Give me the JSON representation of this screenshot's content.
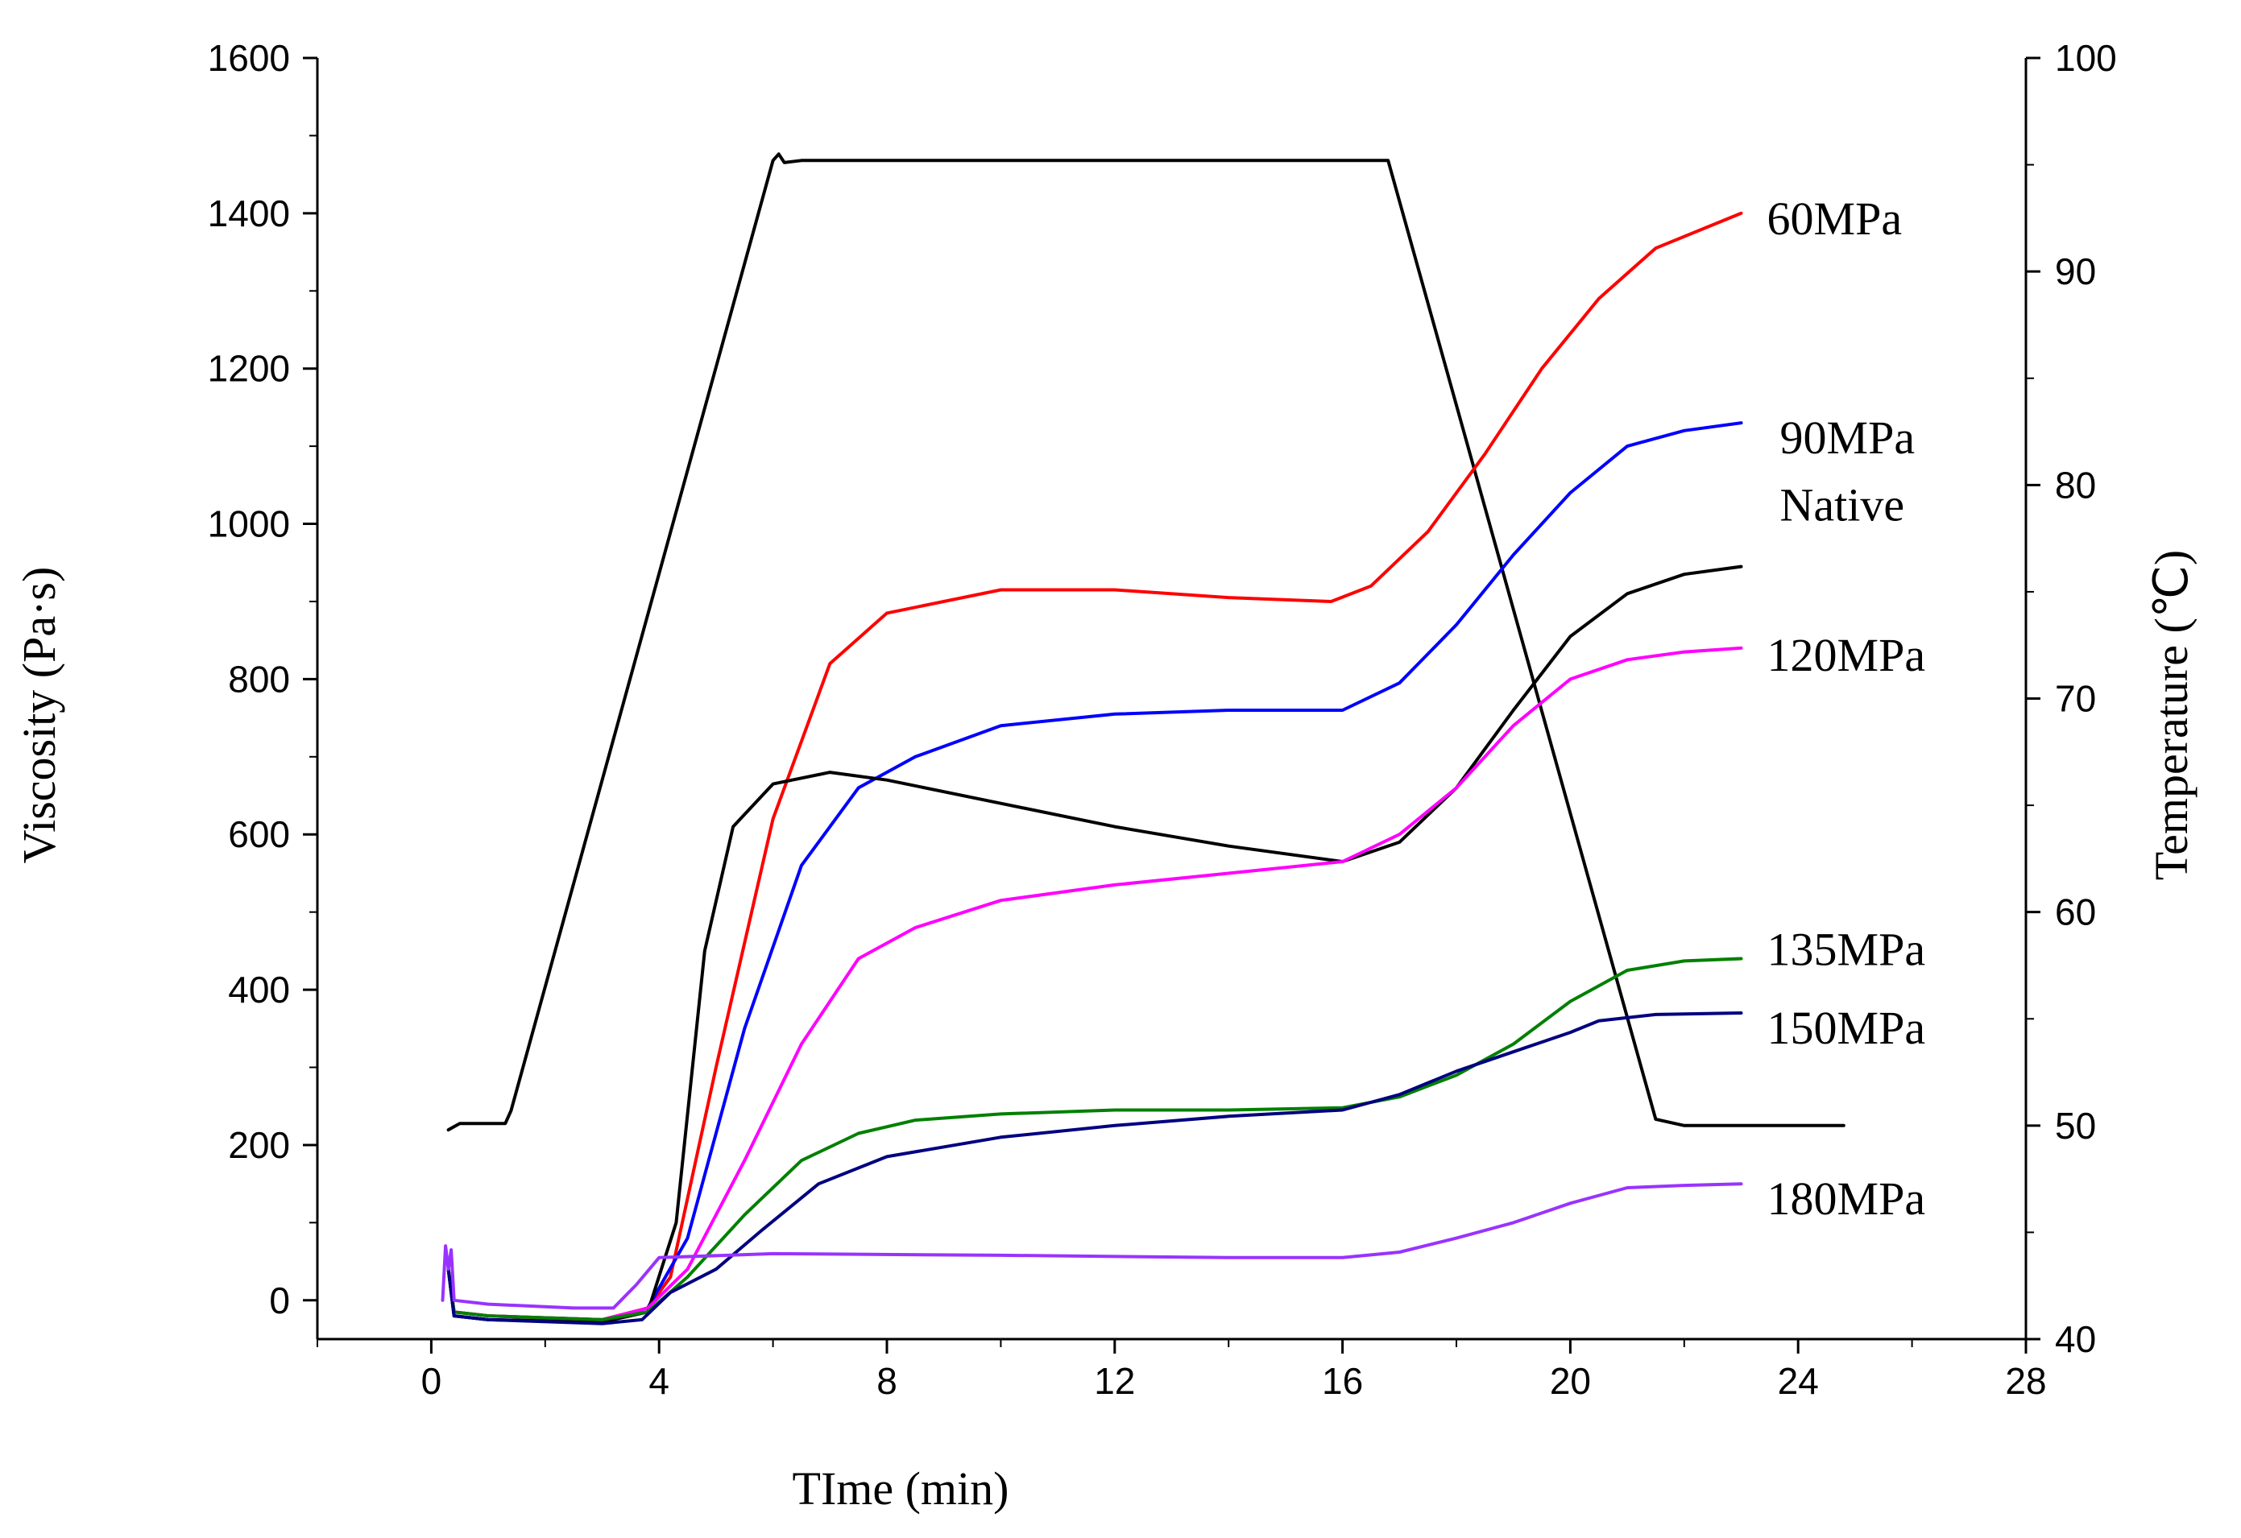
{
  "chart_data": {
    "type": "line",
    "title": "",
    "xlabel": "TIme (min)",
    "ylabel": "Viscosity (Pa·s)",
    "y2label": "Temperature (℃)",
    "xlim": [
      -2,
      28
    ],
    "ylim": [
      -50,
      1600
    ],
    "y2lim": [
      40,
      100
    ],
    "x_ticks": [
      0,
      4,
      8,
      12,
      16,
      20,
      24,
      28
    ],
    "y_ticks": [
      0,
      200,
      400,
      600,
      800,
      1000,
      1200,
      1400,
      1600
    ],
    "y2_ticks": [
      40,
      50,
      60,
      70,
      80,
      90,
      100
    ],
    "x_tick_labels": [
      "0",
      "4",
      "8",
      "12",
      "16",
      "20",
      "24",
      "28"
    ],
    "y_tick_labels": [
      "0",
      "200",
      "400",
      "600",
      "800",
      "1000",
      "1200",
      "1400",
      "1600"
    ],
    "y2_tick_labels": [
      "40",
      "50",
      "60",
      "70",
      "80",
      "90",
      "100"
    ],
    "grid": false,
    "series": [
      {
        "name": "Temperature",
        "axis": "right",
        "color": "#000000",
        "x": [
          0.3,
          0.5,
          1.3,
          1.4,
          6.0,
          6.1,
          6.2,
          6.5,
          16.8,
          21.5,
          22.0,
          24.8
        ],
        "y": [
          49.8,
          50.1,
          50.1,
          50.7,
          95.2,
          95.5,
          95.1,
          95.2,
          95.2,
          50.3,
          50.0,
          50.0
        ]
      },
      {
        "name": "60MPa",
        "label": "60MPa",
        "axis": "left",
        "color": "#ff0000",
        "x": [
          0.3,
          0.4,
          1.0,
          3.0,
          3.8,
          4.2,
          5.0,
          6.0,
          7.0,
          8.0,
          10.0,
          12.0,
          14.0,
          15.8,
          16.5,
          17.5,
          18.5,
          19.5,
          20.5,
          21.5,
          23.0
        ],
        "y": [
          40,
          -15,
          -20,
          -25,
          -10,
          30,
          300,
          620,
          820,
          885,
          915,
          915,
          905,
          900,
          920,
          990,
          1090,
          1200,
          1290,
          1355,
          1400
        ]
      },
      {
        "name": "90MPa",
        "label": "90MPa",
        "axis": "left",
        "color": "#0000ff",
        "x": [
          0.3,
          0.4,
          1.0,
          3.0,
          3.8,
          4.5,
          5.5,
          6.5,
          7.5,
          8.5,
          10.0,
          12.0,
          14.0,
          16.0,
          17.0,
          18.0,
          19.0,
          20.0,
          21.0,
          22.0,
          23.0
        ],
        "y": [
          40,
          -20,
          -25,
          -28,
          -10,
          80,
          350,
          560,
          660,
          700,
          740,
          755,
          760,
          760,
          795,
          870,
          960,
          1040,
          1100,
          1120,
          1130
        ]
      },
      {
        "name": "Native",
        "label": "Native",
        "axis": "left",
        "color": "#000000",
        "x": [
          0.3,
          0.4,
          1.0,
          3.0,
          3.8,
          4.3,
          4.8,
          5.3,
          6.0,
          7.0,
          8.0,
          10.0,
          12.0,
          14.0,
          16.0,
          17.0,
          18.0,
          19.0,
          20.0,
          21.0,
          22.0,
          23.0
        ],
        "y": [
          40,
          -20,
          -25,
          -28,
          -15,
          100,
          450,
          610,
          665,
          680,
          670,
          640,
          610,
          585,
          565,
          590,
          660,
          760,
          855,
          910,
          935,
          945
        ]
      },
      {
        "name": "120MPa",
        "label": "120MPa",
        "axis": "left",
        "color": "#ff00ff",
        "x": [
          0.3,
          0.4,
          1.0,
          3.0,
          3.8,
          4.5,
          5.5,
          6.5,
          7.5,
          8.5,
          10.0,
          12.0,
          14.0,
          16.0,
          17.0,
          18.0,
          19.0,
          20.0,
          21.0,
          22.0,
          23.0
        ],
        "y": [
          40,
          -15,
          -20,
          -25,
          -10,
          40,
          180,
          330,
          440,
          480,
          515,
          535,
          550,
          565,
          600,
          660,
          740,
          800,
          825,
          835,
          840
        ]
      },
      {
        "name": "135MPa",
        "label": "135MPa",
        "axis": "left",
        "color": "#008000",
        "x": [
          0.3,
          0.4,
          1.0,
          3.0,
          3.8,
          4.5,
          5.5,
          6.5,
          7.5,
          8.5,
          10.0,
          12.0,
          14.0,
          16.0,
          17.0,
          18.0,
          19.0,
          20.0,
          21.0,
          22.0,
          23.0
        ],
        "y": [
          40,
          -15,
          -20,
          -25,
          -15,
          30,
          110,
          180,
          215,
          232,
          240,
          245,
          245,
          248,
          262,
          290,
          330,
          385,
          425,
          437,
          440
        ]
      },
      {
        "name": "150MPa",
        "label": "150MPa",
        "axis": "left",
        "color": "#000080",
        "x": [
          0.3,
          0.4,
          1.0,
          3.0,
          3.7,
          4.2,
          5.0,
          5.8,
          6.8,
          8.0,
          10.0,
          12.0,
          14.0,
          16.0,
          17.0,
          18.0,
          19.0,
          20.0,
          20.5,
          21.5,
          23.0
        ],
        "y": [
          40,
          -20,
          -25,
          -30,
          -25,
          10,
          40,
          90,
          150,
          185,
          210,
          225,
          237,
          245,
          265,
          295,
          320,
          345,
          360,
          368,
          370
        ]
      },
      {
        "name": "180MPa",
        "label": "180MPa",
        "axis": "left",
        "color": "#9933ff",
        "x": [
          0.2,
          0.25,
          0.3,
          0.35,
          0.4,
          1.0,
          2.5,
          3.2,
          3.6,
          4.0,
          6.0,
          10.0,
          14.0,
          16.0,
          17.0,
          18.0,
          19.0,
          20.0,
          21.0,
          22.0,
          23.0
        ],
        "y": [
          0,
          70,
          40,
          65,
          0,
          -5,
          -10,
          -10,
          20,
          55,
          60,
          58,
          55,
          55,
          62,
          80,
          100,
          125,
          145,
          148,
          150
        ]
      }
    ]
  }
}
